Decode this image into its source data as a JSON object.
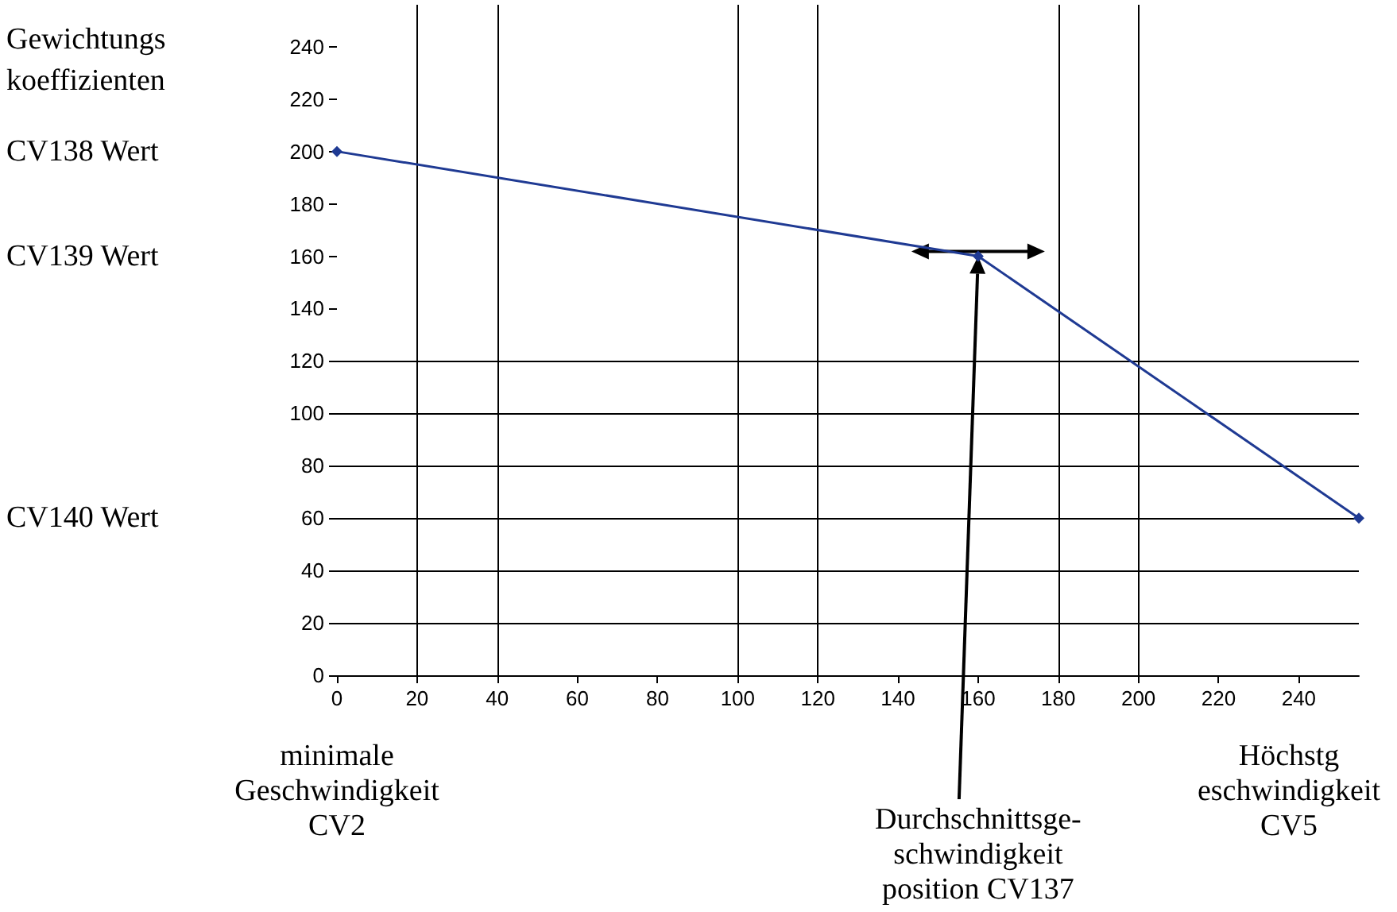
{
  "chart_data": {
    "type": "line",
    "ylabel": "Gewichtungs\nkoeffizienten",
    "x": [
      0,
      160,
      255
    ],
    "values": [
      200,
      160,
      60
    ],
    "color": "#1f3a93",
    "marker": "diamond",
    "line_style": "solid",
    "grid": false,
    "xlim": [
      0,
      255
    ],
    "xticks": [
      0,
      20,
      40,
      60,
      80,
      100,
      120,
      140,
      160,
      180,
      200,
      220,
      240
    ],
    "ylim": [
      0,
      256
    ],
    "yticks": [
      0,
      20,
      40,
      60,
      80,
      100,
      120,
      140,
      160,
      180,
      200,
      220,
      240
    ],
    "ref_lines": [
      {
        "axis": "x",
        "value": 20
      },
      {
        "axis": "x",
        "value": 40
      },
      {
        "axis": "x",
        "value": 100
      },
      {
        "axis": "x",
        "value": 120
      },
      {
        "axis": "x",
        "value": 180
      },
      {
        "axis": "x",
        "value": 200
      },
      {
        "axis": "y",
        "value": 20
      },
      {
        "axis": "y",
        "value": 40
      },
      {
        "axis": "y",
        "value": 60
      },
      {
        "axis": "y",
        "value": 80
      },
      {
        "axis": "y",
        "value": 100
      },
      {
        "axis": "y",
        "value": 120
      }
    ],
    "annotations": [
      "CV138 Wert",
      "CV139 Wert",
      "CV140 Wert",
      "minimale\nGeschwindigkeit\nCV2",
      "Durchschnittsge-\nschwindigkeit\nposition CV137",
      "Höchstg\neschwindigkeit\nCV5"
    ]
  }
}
